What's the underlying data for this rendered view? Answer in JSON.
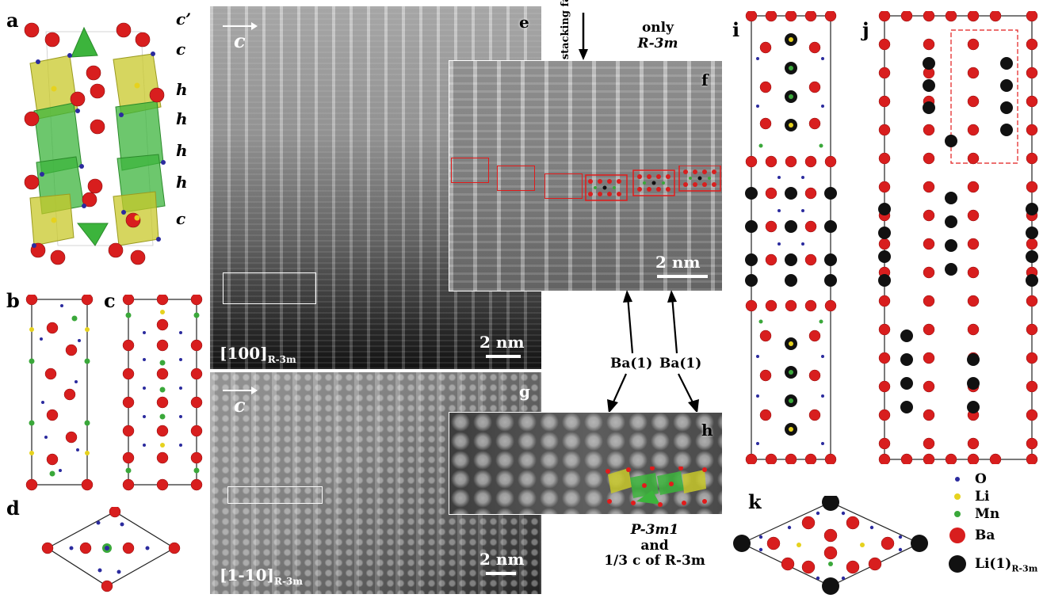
{
  "panels": {
    "a": "a",
    "b": "b",
    "c": "c",
    "d": "d",
    "e": "e",
    "f": "f",
    "g": "g",
    "h": "h",
    "i": "i",
    "j": "j",
    "k": "k"
  },
  "stacking_sequence": [
    "c’",
    "c",
    "h",
    "h",
    "h",
    "h",
    "c"
  ],
  "micrographs": {
    "e": {
      "axis_letter": "c",
      "zone_axis": "[100]",
      "zone_axis_sub": "R-3m",
      "scale_bar": "2 nm"
    },
    "f": {
      "scale_bar": "2 nm"
    },
    "g": {
      "axis_letter": "c",
      "zone_axis": "[1-10]",
      "zone_axis_sub": "R-3m",
      "scale_bar": "2 nm"
    }
  },
  "annotations": {
    "stacking_fault": "stacking fault*",
    "only_line1": "only",
    "only_line2": "R-3m",
    "ba1_left": "Ba(1)",
    "ba1_right": "Ba(1)",
    "bottom_line1": "P-3m1",
    "bottom_line2": "and",
    "bottom_line3": "1/3 c of R-3m"
  },
  "legend": [
    {
      "label": "O",
      "sub": "",
      "color": "#2b2b9e",
      "size": 6
    },
    {
      "label": "Li",
      "sub": "",
      "color": "#e6d21e",
      "size": 8
    },
    {
      "label": "Mn",
      "sub": "",
      "color": "#3aa83a",
      "size": 8
    },
    {
      "label": "Ba",
      "sub": "",
      "color": "#d81e1e",
      "size": 20
    },
    {
      "label": "Li(1)",
      "sub": "R-3m",
      "color": "#111111",
      "size": 22
    }
  ]
}
